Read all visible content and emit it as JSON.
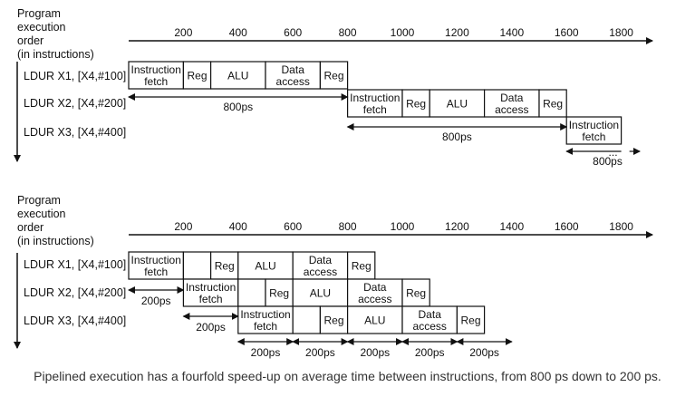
{
  "time_axis": {
    "ticks": [
      "200",
      "400",
      "600",
      "800",
      "1000",
      "1200",
      "1400",
      "1600",
      "1800"
    ]
  },
  "axis_label_lines": [
    "Program",
    "execution",
    "order",
    "(in instructions)"
  ],
  "instructions": [
    "LDUR X1, [X4,#100]",
    "LDUR X2, [X4,#200]",
    "LDUR X3, [X4,#400]"
  ],
  "stage_labels": {
    "fetch": [
      "Instruction",
      "fetch"
    ],
    "reg": [
      "Reg"
    ],
    "alu": [
      "ALU"
    ],
    "mem": [
      "Data",
      "access"
    ]
  },
  "non_pipelined": {
    "stage_times_ps": [
      200,
      100,
      200,
      200,
      100
    ],
    "instruction_starts_ps": [
      0,
      800,
      1600
    ],
    "third_instruction_stages_shown": 1,
    "interval_label": "800ps"
  },
  "pipelined": {
    "stage_times_ps": [
      200,
      100,
      200,
      200,
      100
    ],
    "pipeline_slot_ps": 200,
    "instruction_starts_ps": [
      0,
      200,
      400
    ],
    "interval_label": "200ps"
  },
  "caption": "Pipelined execution has  a fourfold speed-up on average time between instructions, from 800 ps down to 200 ps."
}
